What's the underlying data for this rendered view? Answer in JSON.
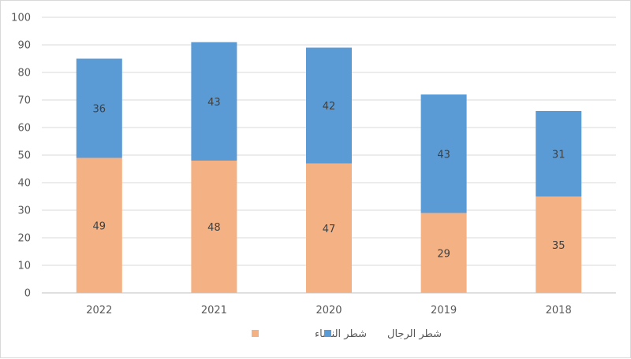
{
  "chart_data": {
    "type": "bar",
    "stacked": true,
    "categories": [
      "2022",
      "2021",
      "2020",
      "2019",
      "2018"
    ],
    "series": [
      {
        "name": "شطر النساء",
        "values": [
          49,
          48,
          47,
          29,
          35
        ],
        "color": "#f4b183"
      },
      {
        "name": "شطر الرجال",
        "values": [
          36,
          43,
          42,
          43,
          31
        ],
        "color": "#5b9bd5"
      }
    ],
    "yticks": [
      "0",
      "10",
      "20",
      "30",
      "40",
      "50",
      "60",
      "70",
      "80",
      "90",
      "100"
    ],
    "ylim": [
      0,
      100
    ],
    "grid": true,
    "legend_position": "bottom"
  }
}
